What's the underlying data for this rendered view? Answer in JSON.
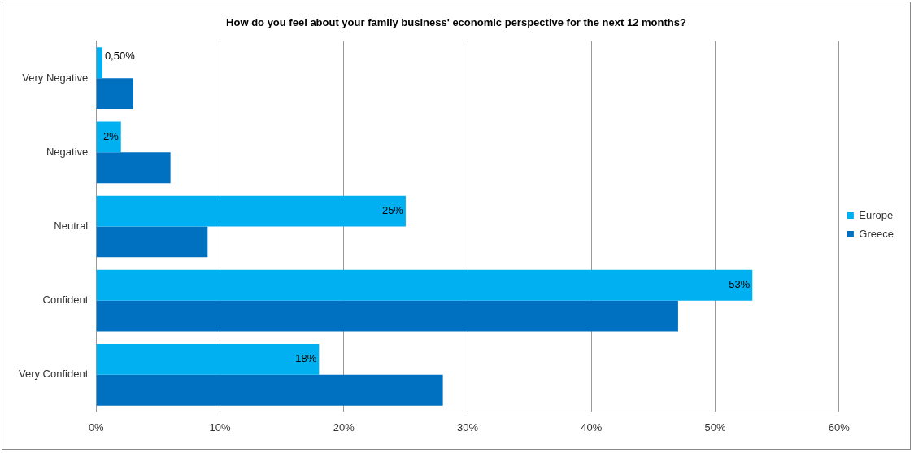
{
  "chart_data": {
    "type": "bar",
    "orientation": "horizontal",
    "title": "How do you feel about your family business' economic perspective for the next 12 months?",
    "categories": [
      "Very Negative",
      "Negative",
      "Neutral",
      "Confident",
      "Very Confident"
    ],
    "series": [
      {
        "name": "Europe",
        "color": "#00b0f0",
        "values": [
          0.5,
          2,
          25,
          53,
          18
        ],
        "value_labels": [
          "0,50%",
          "2%",
          "25%",
          "53%",
          "18%"
        ]
      },
      {
        "name": "Greece",
        "color": "#0070c0",
        "values": [
          3,
          6,
          9,
          47,
          28
        ]
      }
    ],
    "xlim": [
      0,
      60
    ],
    "xticks": [
      {
        "value": 0,
        "label": "0%"
      },
      {
        "value": 10,
        "label": "10%"
      },
      {
        "value": 20,
        "label": "20%"
      },
      {
        "value": 30,
        "label": "30%"
      },
      {
        "value": 40,
        "label": "40%"
      },
      {
        "value": 50,
        "label": "50%"
      },
      {
        "value": 60,
        "label": "60%"
      }
    ],
    "grid": "x",
    "legend": "right"
  }
}
